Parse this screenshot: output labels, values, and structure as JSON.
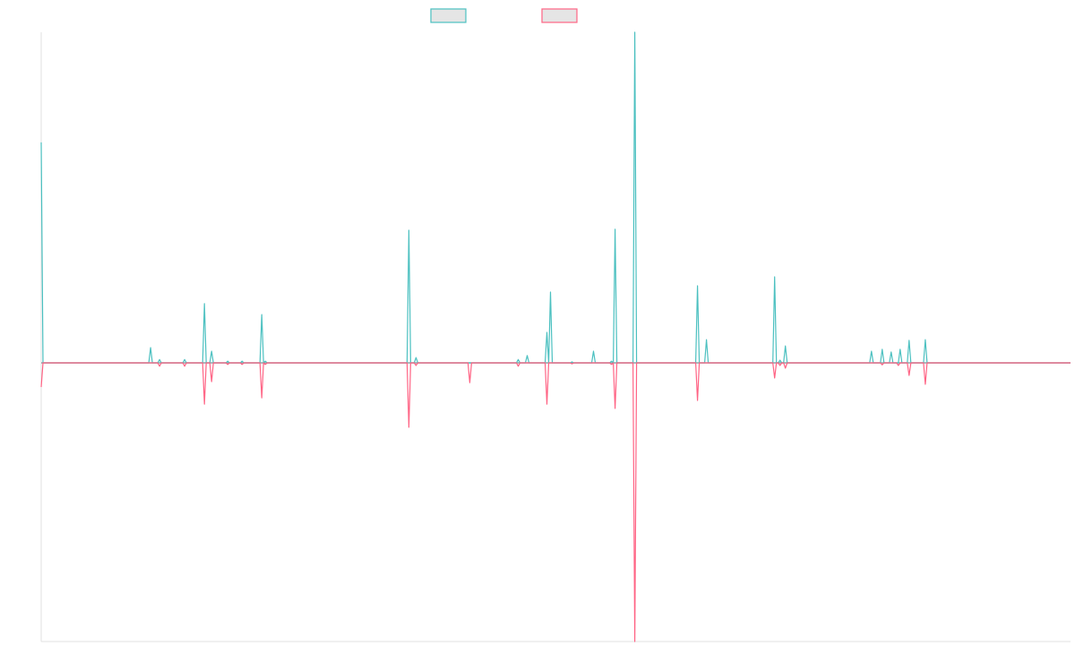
{
  "chart_data": {
    "type": "line",
    "title": "",
    "xlabel": "",
    "ylabel": "",
    "xlim": [
      0,
      574
    ],
    "ylim": [
      -84.3,
      100
    ],
    "grid": false,
    "legend": "top-center",
    "series": [
      {
        "color": "#4bc0c0",
        "legend_fill": "#e5e5e5",
        "points": [
          [
            0,
            66.7
          ],
          [
            61,
            4.6
          ],
          [
            66,
            1
          ],
          [
            80,
            1
          ],
          [
            91,
            17.9
          ],
          [
            95,
            3.5
          ],
          [
            104,
            0.5
          ],
          [
            112,
            0.5
          ],
          [
            123,
            14.6
          ],
          [
            125,
            0.5
          ],
          [
            205,
            40.1
          ],
          [
            209,
            1.6
          ],
          [
            266,
            1
          ],
          [
            271,
            2.2
          ],
          [
            282,
            9.2
          ],
          [
            284,
            21.4
          ],
          [
            296,
            0.3
          ],
          [
            308,
            3.5
          ],
          [
            318,
            0.5
          ],
          [
            320,
            40.4
          ],
          [
            331,
            100
          ],
          [
            366,
            23.3
          ],
          [
            371,
            7
          ],
          [
            409,
            26
          ],
          [
            412,
            0.8
          ],
          [
            415,
            5.1
          ],
          [
            463,
            3.5
          ],
          [
            469,
            4.1
          ],
          [
            474,
            3.3
          ],
          [
            479,
            4.1
          ],
          [
            484,
            6.8
          ],
          [
            493,
            7
          ]
        ]
      },
      {
        "color": "#ff6384",
        "legend_fill": "#e5e5e5",
        "points": [
          [
            0,
            -7.3
          ],
          [
            66,
            -1
          ],
          [
            80,
            -1
          ],
          [
            91,
            -12.5
          ],
          [
            95,
            -5.7
          ],
          [
            104,
            -0.5
          ],
          [
            112,
            -0.5
          ],
          [
            123,
            -10.6
          ],
          [
            125,
            -0.5
          ],
          [
            205,
            -19.5
          ],
          [
            209,
            -0.8
          ],
          [
            239,
            -6
          ],
          [
            266,
            -1
          ],
          [
            282,
            -12.5
          ],
          [
            296,
            -0.3
          ],
          [
            318,
            -0.5
          ],
          [
            320,
            -13.8
          ],
          [
            331,
            -84.3
          ],
          [
            366,
            -11.4
          ],
          [
            409,
            -4.6
          ],
          [
            412,
            -0.8
          ],
          [
            415,
            -1.6
          ],
          [
            469,
            -0.6
          ],
          [
            478,
            -0.8
          ],
          [
            484,
            -3.8
          ],
          [
            493,
            -6.5
          ]
        ]
      }
    ]
  }
}
